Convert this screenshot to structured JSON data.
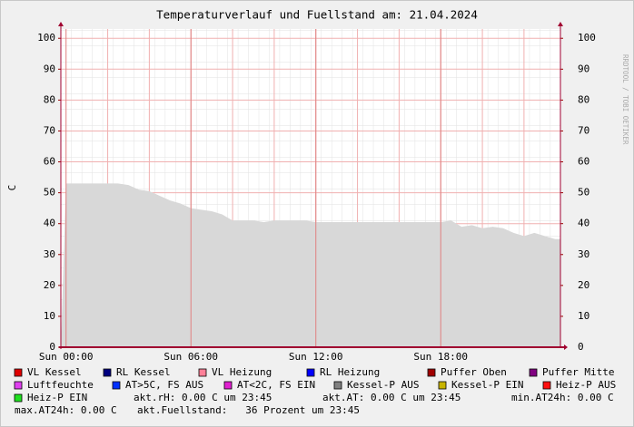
{
  "chart_data": {
    "type": "area",
    "title": "Temperaturverlauf und Fuellstand am: 21.04.2024",
    "y_label": "C",
    "watermark": "RRDTOOL / TOBI OETIKER",
    "color": "#d8d8d8",
    "x": [
      0,
      0.5,
      1,
      1.5,
      2,
      2.5,
      3,
      3.5,
      4,
      4.5,
      5,
      5.5,
      6,
      6.5,
      7,
      7.5,
      8,
      8.5,
      9,
      9.5,
      10,
      10.5,
      11,
      11.5,
      12,
      12.5,
      13,
      13.5,
      14,
      14.5,
      15,
      15.5,
      16,
      16.5,
      17,
      17.5,
      18,
      18.5,
      19,
      19.5,
      20,
      20.5,
      21,
      21.5,
      22,
      22.5,
      23,
      23.5
    ],
    "values": [
      53,
      53,
      53,
      53,
      53,
      53,
      52.5,
      51,
      50.5,
      49,
      47.5,
      46.5,
      45,
      44.5,
      44,
      43,
      41,
      41,
      41,
      40.5,
      41,
      41,
      41,
      41,
      40.5,
      40.5,
      40.5,
      40.5,
      40.5,
      40.5,
      40.5,
      40.5,
      40.5,
      40.5,
      40.5,
      40.5,
      40.5,
      41,
      39,
      39.5,
      38.5,
      39,
      38.5,
      37,
      36,
      37,
      36,
      35
    ],
    "xlim": [
      -0.25,
      23.75
    ],
    "xticks": [
      {
        "value": 0,
        "label": "Sun 00:00"
      },
      {
        "value": 6,
        "label": "Sun 06:00"
      },
      {
        "value": 12,
        "label": "Sun 12:00"
      },
      {
        "value": 18,
        "label": "Sun 18:00"
      }
    ],
    "ylim": [
      0,
      103
    ],
    "yticks": [
      0,
      10,
      20,
      30,
      40,
      50,
      60,
      70,
      80,
      90,
      100
    ],
    "grid": true,
    "legend": [
      {
        "name": "VL Kessel",
        "color": "#e00000"
      },
      {
        "name": "RL Kessel",
        "color": "#000080"
      },
      {
        "name": "VL Heizung",
        "color": "#ff8098"
      },
      {
        "name": "RL Heizung",
        "color": "#0000ff"
      },
      {
        "name": "Puffer Oben",
        "color": "#a00000"
      },
      {
        "name": "Puffer Mitte",
        "color": "#800080"
      },
      {
        "name": "Luftfeuchte",
        "color": "#e040f0"
      },
      {
        "name": "AT>5C, FS AUS",
        "color": "#0030ff"
      },
      {
        "name": "AT<2C, FS EIN",
        "color": "#e020d0"
      },
      {
        "name": "Kessel-P AUS",
        "color": "#808080"
      },
      {
        "name": "Kessel-P EIN",
        "color": "#c8b400"
      },
      {
        "name": "Heiz-P AUS",
        "color": "#ff1010"
      },
      {
        "name": "Heiz-P EIN",
        "color": "#20e020"
      }
    ],
    "annotations": [
      "akt.rH: 0.00 C um 23:45",
      "akt.AT: 0.00 C um 23:45",
      "min.AT24h: 0.00 C",
      "max.AT24h: 0.00 C",
      "akt.Fuellstand:   36 Prozent um 23:45"
    ]
  }
}
